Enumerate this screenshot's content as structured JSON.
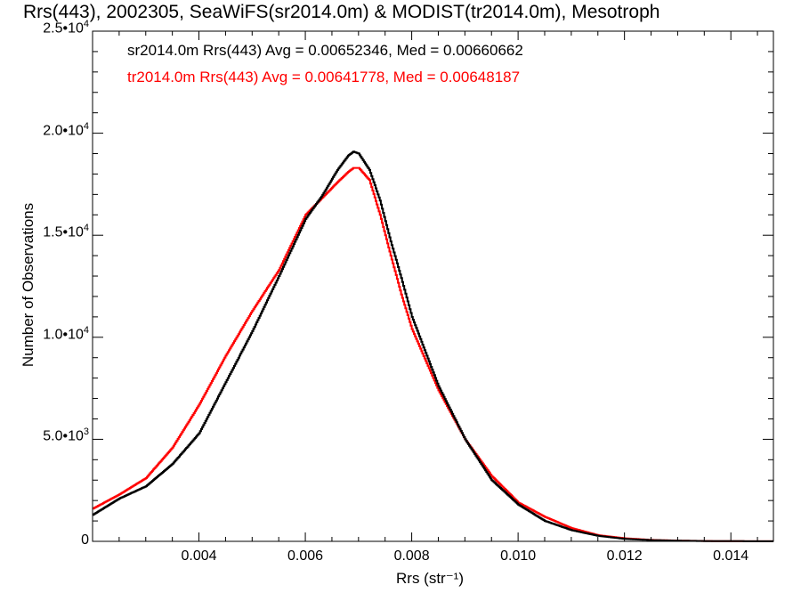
{
  "chart_data": {
    "type": "line",
    "title": "Rrs(443), 2002305, SeaWiFS(sr2014.0m) & MODIST(tr2014.0m), Mesotroph",
    "xlabel": "Rrs (str⁻¹)",
    "ylabel": "Number of Observations",
    "xlim": [
      0.002,
      0.0148
    ],
    "ylim": [
      0,
      25000
    ],
    "x_ticks": [
      {
        "value": 0.004,
        "label": "0.004"
      },
      {
        "value": 0.006,
        "label": "0.006"
      },
      {
        "value": 0.008,
        "label": "0.008"
      },
      {
        "value": 0.01,
        "label": "0.010"
      },
      {
        "value": 0.012,
        "label": "0.012"
      },
      {
        "value": 0.014,
        "label": "0.014"
      }
    ],
    "y_ticks": [
      {
        "value": 0,
        "label": "0",
        "exp": ""
      },
      {
        "value": 5000,
        "label": "5.0•1",
        "exp": "3"
      },
      {
        "value": 10000,
        "label": "1.0•1",
        "exp": "4"
      },
      {
        "value": 15000,
        "label": "1.5•1",
        "exp": "4"
      },
      {
        "value": 20000,
        "label": "2.0•1",
        "exp": "4"
      },
      {
        "value": 25000,
        "label": "2.5•1",
        "exp": "4"
      }
    ],
    "grid": false,
    "legend_position": "top-left",
    "series": [
      {
        "label": "sr2014.0m Rrs(443) Avg = 0.00652346, Med = 0.00660662",
        "color": "#000000",
        "x": [
          0.002,
          0.0025,
          0.003,
          0.0035,
          0.004,
          0.0045,
          0.005,
          0.0055,
          0.006,
          0.0063,
          0.0066,
          0.0068,
          0.0069,
          0.007,
          0.0072,
          0.0074,
          0.0076,
          0.0078,
          0.008,
          0.0085,
          0.009,
          0.0095,
          0.01,
          0.0105,
          0.011,
          0.0115,
          0.012,
          0.0125,
          0.013,
          0.0135,
          0.014,
          0.0148
        ],
        "y": [
          1300,
          2100,
          2700,
          3800,
          5300,
          7800,
          10300,
          13000,
          15800,
          16900,
          18200,
          18900,
          19100,
          19000,
          18200,
          16700,
          14700,
          12900,
          11000,
          7600,
          5000,
          3000,
          1800,
          1000,
          550,
          270,
          120,
          60,
          30,
          15,
          8,
          3
        ]
      },
      {
        "label": "tr2014.0m Rrs(443) Avg = 0.00641778, Med = 0.00648187",
        "color": "#ff0000",
        "x": [
          0.002,
          0.0025,
          0.003,
          0.0035,
          0.004,
          0.0045,
          0.005,
          0.0055,
          0.006,
          0.0063,
          0.0066,
          0.0068,
          0.0069,
          0.007,
          0.0072,
          0.0074,
          0.0076,
          0.0078,
          0.008,
          0.0085,
          0.009,
          0.0095,
          0.01,
          0.0105,
          0.011,
          0.0115,
          0.012,
          0.0125,
          0.013,
          0.0135,
          0.014,
          0.0148
        ],
        "y": [
          1600,
          2300,
          3100,
          4600,
          6700,
          9100,
          11300,
          13300,
          16000,
          16800,
          17600,
          18100,
          18300,
          18300,
          17700,
          16000,
          14000,
          12100,
          10400,
          7400,
          5000,
          3200,
          1900,
          1200,
          650,
          300,
          150,
          70,
          35,
          18,
          8,
          3
        ]
      }
    ]
  }
}
